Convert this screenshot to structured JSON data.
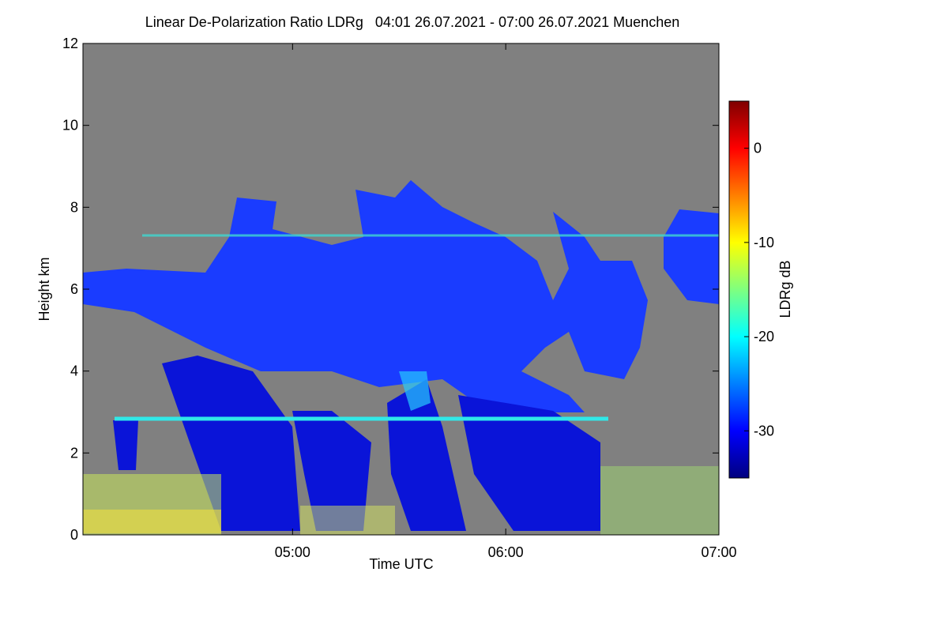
{
  "chart_data": {
    "type": "heatmap",
    "title": "Linear De-Polarization Ratio LDRg   04:01 26.07.2021 - 07:00 26.07.2021 Muenchen",
    "x_label": "Time UTC",
    "y_label": "Height km",
    "colorbar_label": "LDRg dB",
    "xlim": [
      241,
      420
    ],
    "xticks": [
      {
        "value": 300,
        "label": "05:00"
      },
      {
        "value": 360,
        "label": "06:00"
      },
      {
        "value": 420,
        "label": "07:00"
      }
    ],
    "ylim": [
      0,
      12
    ],
    "yticks": [
      0,
      2,
      4,
      6,
      8,
      10,
      12
    ],
    "clim": [
      -35,
      5
    ],
    "cticks": [
      -30,
      -20,
      -10,
      0
    ],
    "colormap": [
      "#00007f",
      "#0000ff",
      "#007fff",
      "#00ffff",
      "#7fff7f",
      "#ffff00",
      "#ff7f00",
      "#ff0000",
      "#7f0000"
    ],
    "background": "#808080"
  }
}
